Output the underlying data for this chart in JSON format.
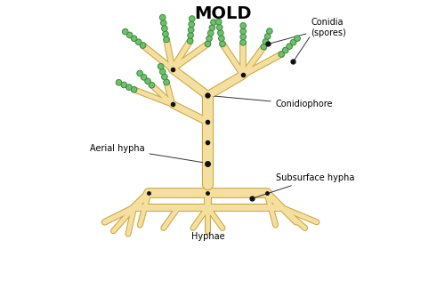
{
  "title": "MOLD",
  "title_fontsize": 14,
  "title_fontweight": "bold",
  "bg_color": "#ffffff",
  "stem_color": "#F5DFA0",
  "stem_edge_color": "#C8A840",
  "spore_fill_color": "#6EC06E",
  "spore_edge_color": "#3A8A3A",
  "dot_color": "#111111",
  "line_color": "#333333",
  "labels": {
    "conidia": "Conidia\n(spores)",
    "conidiophore": "Conidiophore",
    "aerial_hypha": "Aerial hypha",
    "subsurface_hypha": "Subsurface hypha",
    "hyphae": "Hyphae"
  }
}
